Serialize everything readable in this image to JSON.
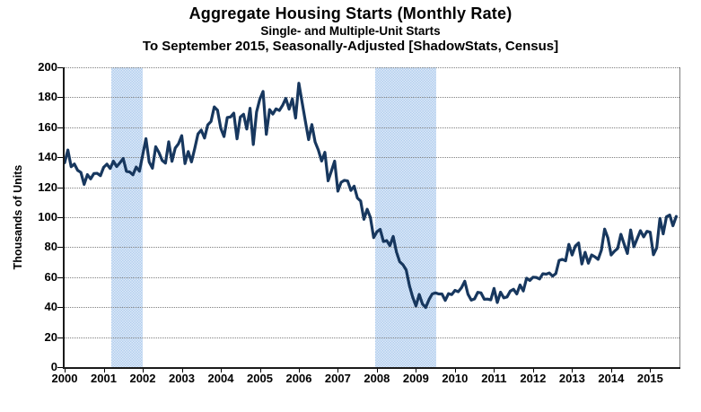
{
  "title": "Aggregate Housing Starts (Monthly Rate)",
  "subtitle": "Single- and Multiple-Unit Starts",
  "subtitle2": "To September 2015, Seasonally-Adjusted [ShadowStats, Census]",
  "colors": {
    "line": "#17375E",
    "recession_band": "#C7DAF1",
    "gridline": "#7F7F7F",
    "axis": "#1A1A1A",
    "text": "#000000",
    "background": "#FFFFFF"
  },
  "chart_data": {
    "type": "line",
    "title": "Aggregate Housing Starts (Monthly Rate)",
    "subtitle": "Single- and Multiple-Unit Starts",
    "subtitle2": "To September 2015, Seasonally-Adjusted [ShadowStats, Census]",
    "xlabel": "",
    "ylabel": "Thousands of Units",
    "ylim": [
      0,
      200
    ],
    "y_tick_step": 20,
    "y_tick_labels": [
      "0",
      "20",
      "40",
      "60",
      "80",
      "100",
      "120",
      "140",
      "160",
      "180",
      "200"
    ],
    "x_tick_labels": [
      "2000",
      "2001",
      "2002",
      "2003",
      "2004",
      "2005",
      "2006",
      "2007",
      "2008",
      "2009",
      "2010",
      "2011",
      "2012",
      "2013",
      "2014",
      "2015"
    ],
    "x_start_year": 2000.0,
    "x_end_year": 2015.75,
    "grid": "horizontal-dotted",
    "legend": "none",
    "recession_bands": [
      {
        "from": 2001.2,
        "to": 2002.0
      },
      {
        "from": 2007.95,
        "to": 2009.53
      }
    ],
    "series": [
      {
        "name": "Aggregate Housing Starts",
        "frequency": "monthly",
        "start": "2000-01",
        "end": "2015-09",
        "values": [
          136.3,
          144.8,
          133.7,
          135.5,
          131.3,
          129.9,
          121.9,
          128.4,
          125.6,
          129.1,
          129.3,
          127.7,
          133.3,
          135.4,
          132.5,
          137.4,
          133.8,
          136.3,
          139.2,
          130.6,
          130.2,
          128.3,
          133.5,
          130.7,
          141.5,
          152.4,
          136.8,
          132.7,
          147.0,
          143.1,
          137.9,
          136.1,
          150.3,
          137.3,
          146.1,
          149.0,
          154.4,
          135.8,
          143.8,
          136.9,
          145.9,
          155.6,
          158.1,
          152.8,
          161.6,
          163.9,
          173.6,
          171.4,
          159.3,
          153.8,
          166.5,
          166.9,
          169.4,
          152.3,
          166.8,
          168.7,
          158.8,
          172.7,
          148.5,
          170.2,
          178.7,
          183.9,
          155.3,
          171.8,
          168.8,
          172.3,
          171.2,
          174.6,
          179.3,
          172.1,
          178.9,
          166.2,
          189.4,
          176.6,
          164.1,
          151.8,
          161.8,
          150.2,
          144.8,
          137.5,
          143.3,
          124.3,
          130.8,
          137.4,
          117.4,
          123.3,
          124.6,
          124.2,
          117.9,
          120.7,
          112.8,
          110.8,
          98.6,
          105.3,
          99.8,
          86.4,
          90.3,
          91.9,
          83.8,
          84.4,
          81.1,
          87.2,
          76.9,
          70.3,
          68.3,
          64.8,
          54.3,
          46.7,
          40.8,
          48.5,
          42.1,
          39.8,
          45.0,
          48.8,
          49.5,
          48.8,
          48.8,
          44.5,
          49.0,
          48.4,
          51.2,
          50.3,
          53.0,
          57.3,
          48.6,
          44.7,
          45.5,
          49.9,
          49.5,
          45.3,
          45.4,
          44.9,
          52.5,
          43.1,
          50.0,
          46.2,
          46.8,
          50.7,
          51.9,
          48.8,
          54.8,
          50.8,
          59.3,
          57.8,
          60.0,
          59.8,
          58.8,
          62.3,
          62.0,
          62.8,
          60.7,
          62.4,
          71.2,
          71.9,
          70.9,
          81.9,
          74.8,
          80.8,
          82.8,
          68.8,
          76.6,
          69.3,
          74.8,
          73.6,
          71.9,
          78.0,
          92.1,
          86.2,
          74.8,
          77.3,
          79.2,
          88.6,
          82.0,
          75.8,
          91.5,
          80.3,
          85.7,
          91.0,
          86.9,
          90.6,
          90.0,
          75.0,
          79.5,
          99.2,
          88.9,
          100.3,
          101.5,
          94.3,
          100.5
        ]
      }
    ]
  }
}
